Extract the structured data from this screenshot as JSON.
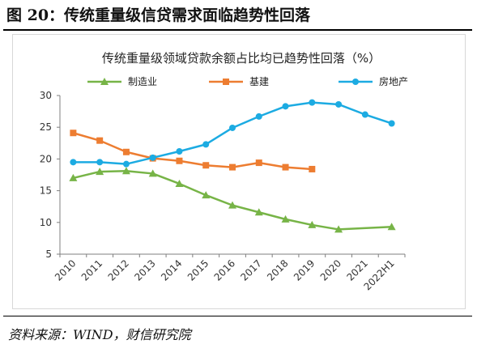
{
  "header": {
    "title": "图 20：传统重量级信贷需求面临趋势性回落"
  },
  "footer": {
    "source": "资料来源：WIND，财信研究院"
  },
  "chart_data": {
    "type": "line",
    "title": "传统重量级领域贷款余额占比均已趋势性回落（%）",
    "xlabel": "",
    "ylabel": "",
    "categories": [
      "2010",
      "2011",
      "2012",
      "2013",
      "2014",
      "2015",
      "2016",
      "2017",
      "2018",
      "2019",
      "2020",
      "2021",
      "2022H1"
    ],
    "ylim": [
      5,
      30
    ],
    "yticks": [
      5,
      10,
      15,
      20,
      25,
      30
    ],
    "grid": false,
    "legend_position": "top",
    "series": [
      {
        "name": "制造业",
        "color": "#77b447",
        "marker": "triangle",
        "values": [
          17.0,
          18.0,
          18.1,
          17.7,
          16.1,
          14.3,
          12.7,
          11.6,
          10.5,
          9.6,
          8.9,
          null,
          9.3
        ]
      },
      {
        "name": "基建",
        "color": "#ed7d31",
        "marker": "square",
        "values": [
          24.1,
          22.9,
          21.1,
          20.1,
          19.7,
          19.0,
          18.7,
          19.4,
          18.7,
          18.4,
          null,
          null,
          null
        ]
      },
      {
        "name": "房地产",
        "color": "#1cabe2",
        "marker": "circle",
        "values": [
          19.5,
          19.5,
          19.2,
          20.2,
          21.2,
          22.3,
          24.9,
          26.7,
          28.3,
          28.9,
          28.6,
          27.0,
          25.6
        ]
      }
    ]
  }
}
